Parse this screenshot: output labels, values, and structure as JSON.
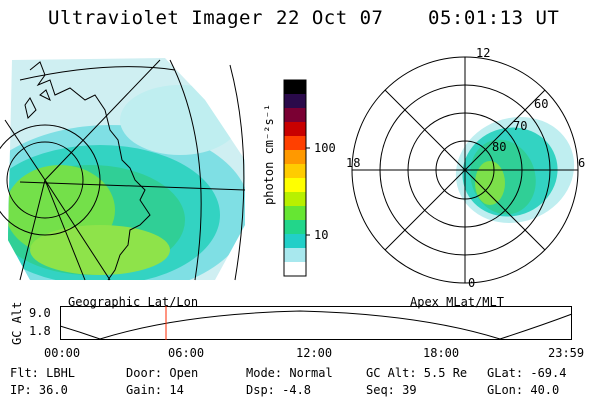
{
  "header": {
    "instrument": "Ultraviolet Imager",
    "date": "22 Oct 07",
    "time": "05:01:13 UT"
  },
  "geo_panel": {
    "caption": "Geographic Lat/Lon"
  },
  "colorbar": {
    "label": "photon cm⁻²s⁻¹",
    "ticks": [
      "100",
      "10"
    ],
    "colors": [
      "#000000",
      "#2a0a4a",
      "#7a0033",
      "#c80000",
      "#ff4000",
      "#ff9900",
      "#ffcc00",
      "#ffff00",
      "#b8f000",
      "#66e633",
      "#22d68a",
      "#22cfc8",
      "#a8e8ee",
      "#ffffff"
    ]
  },
  "polar_panel": {
    "caption": "Apex MLat/MLT",
    "hour_labels": {
      "top": "12",
      "left": "18",
      "right": "6",
      "bottom": "0"
    },
    "lat_labels": [
      "60",
      "70",
      "80"
    ]
  },
  "orbit_plot": {
    "ylabel": "GC Alt",
    "yticks": [
      "9.0",
      "1.8"
    ],
    "xticks": [
      "00:00",
      "06:00",
      "12:00",
      "18:00",
      "23:59"
    ],
    "marker_color": "#ff2a00"
  },
  "footer": {
    "row1": {
      "flt": "Flt: LBHL",
      "door": "Door: Open",
      "mode": "Mode: Normal",
      "gcalt": "GC Alt: 5.5 Re",
      "glat": "GLat: -69.4"
    },
    "row2": {
      "ip": "IP: 36.0",
      "gain": "Gain: 14",
      "dsp": "Dsp:   -4.8",
      "seq": "Seq: 39",
      "glon": "GLon:  40.0"
    }
  }
}
